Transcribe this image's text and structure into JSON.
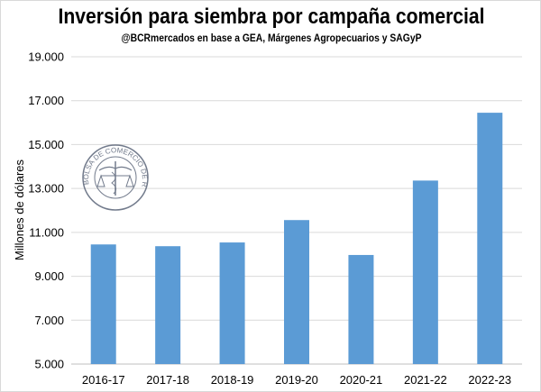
{
  "chart_data": {
    "type": "bar",
    "title": "Inversión para siembra por campaña comercial",
    "subtitle": "@BCRmercados en base a GEA, Márgenes Agropecuarios y SAGyP",
    "xlabel": "",
    "ylabel": "Millones de dólares",
    "categories": [
      "2016-17",
      "2017-18",
      "2018-19",
      "2019-20",
      "2020-21",
      "2021-22",
      "2022-23"
    ],
    "values": [
      10450,
      10370,
      10540,
      11560,
      9970,
      13360,
      16450
    ],
    "ylim": [
      5000,
      19000
    ],
    "yticks": [
      5000,
      7000,
      9000,
      11000,
      13000,
      15000,
      17000,
      19000
    ],
    "ytick_labels": [
      "5.000",
      "7.000",
      "9.000",
      "11.000",
      "13.000",
      "15.000",
      "17.000",
      "19.000"
    ],
    "grid": true,
    "legend": "none",
    "bar_color": "#5b9bd5",
    "watermark": "BOLSA DE COMERCIO DE ROSARIO"
  }
}
